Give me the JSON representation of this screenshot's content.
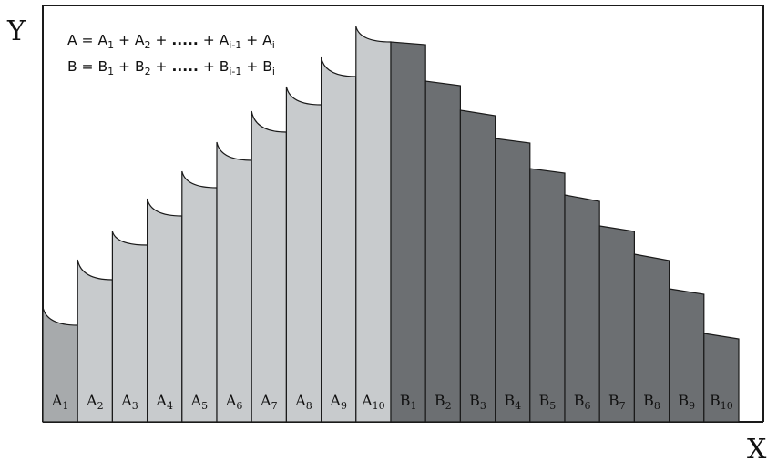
{
  "axes": {
    "y_label": "Y",
    "x_label": "X"
  },
  "formula": {
    "line_a": {
      "lhs": "A = A",
      "s1": "1",
      "p1": " +  A",
      "s2": "2",
      "p2": " + ",
      "dots": ".....",
      "p3": " +  A",
      "s3": "i-1",
      "p4": " + A",
      "s4": "i"
    },
    "line_b": {
      "lhs": "B = B",
      "s1": "1",
      "p1": " +  B",
      "s2": "2",
      "p2": " + ",
      "dots": ".....",
      "p3": " + B",
      "s3": "i-1",
      "p4": " + B",
      "s4": "i"
    }
  },
  "colors": {
    "a_first": "#a7aaac",
    "a_rest": "#c8cbcd",
    "b_segments": "#6c6f72",
    "stroke": "#1a1a1a"
  },
  "segments": [
    {
      "letter": "A",
      "index": "1",
      "group": "A"
    },
    {
      "letter": "A",
      "index": "2",
      "group": "A"
    },
    {
      "letter": "A",
      "index": "3",
      "group": "A"
    },
    {
      "letter": "A",
      "index": "4",
      "group": "A"
    },
    {
      "letter": "A",
      "index": "5",
      "group": "A"
    },
    {
      "letter": "A",
      "index": "6",
      "group": "A"
    },
    {
      "letter": "A",
      "index": "7",
      "group": "A"
    },
    {
      "letter": "A",
      "index": "8",
      "group": "A"
    },
    {
      "letter": "A",
      "index": "9",
      "group": "A"
    },
    {
      "letter": "A",
      "index": "10",
      "group": "A"
    },
    {
      "letter": "B",
      "index": "1",
      "group": "B"
    },
    {
      "letter": "B",
      "index": "2",
      "group": "B"
    },
    {
      "letter": "B",
      "index": "3",
      "group": "B"
    },
    {
      "letter": "B",
      "index": "4",
      "group": "B"
    },
    {
      "letter": "B",
      "index": "5",
      "group": "B"
    },
    {
      "letter": "B",
      "index": "6",
      "group": "B"
    },
    {
      "letter": "B",
      "index": "7",
      "group": "B"
    },
    {
      "letter": "B",
      "index": "8",
      "group": "B"
    },
    {
      "letter": "B",
      "index": "9",
      "group": "B"
    },
    {
      "letter": "B",
      "index": "10",
      "group": "B"
    }
  ]
}
